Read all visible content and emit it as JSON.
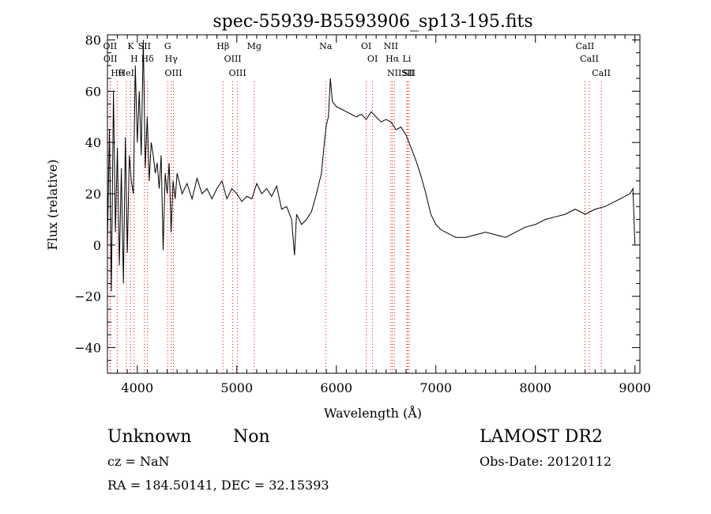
{
  "chart_data": {
    "type": "line",
    "title": "spec-55939-B5593906_sp13-195.fits",
    "xlabel": "Wavelength (Å)",
    "ylabel": "Flux (relative)",
    "xlim": [
      3700,
      9050
    ],
    "ylim": [
      -50,
      82
    ],
    "xticks": [
      4000,
      5000,
      6000,
      7000,
      8000,
      9000
    ],
    "yticks": [
      -40,
      -20,
      0,
      20,
      40,
      60,
      80
    ],
    "grid": false,
    "line_color": "#000000",
    "marker_color": "#ff0000",
    "series": [
      {
        "values_x": [
          3700,
          3720,
          3740,
          3760,
          3780,
          3800,
          3820,
          3840,
          3860,
          3880,
          3900,
          3920,
          3940,
          3960,
          3980,
          4000,
          4020,
          4040,
          4060,
          4080,
          4100,
          4120,
          4140,
          4160,
          4180,
          4200,
          4220,
          4240,
          4260,
          4280,
          4300,
          4320,
          4340,
          4360,
          4380,
          4400,
          4450,
          4500,
          4550,
          4600,
          4650,
          4700,
          4750,
          4800,
          4850,
          4900,
          4950,
          5000,
          5050,
          5100,
          5150,
          5200,
          5250,
          5300,
          5350,
          5400,
          5450,
          5500,
          5550,
          5580,
          5600,
          5650,
          5700,
          5750,
          5800,
          5850,
          5880,
          5900,
          5920,
          5940,
          5960,
          6000,
          6050,
          6100,
          6150,
          6200,
          6250,
          6300,
          6350,
          6400,
          6450,
          6500,
          6550,
          6600,
          6650,
          6700,
          6750,
          6800,
          6850,
          6900,
          6950,
          7000,
          7050,
          7100,
          7150,
          7200,
          7300,
          7400,
          7500,
          7600,
          7700,
          7800,
          7900,
          8000,
          8100,
          8200,
          8300,
          8400,
          8500,
          8600,
          8700,
          8800,
          8900,
          8950,
          8980,
          9000
        ],
        "values_y": [
          0,
          45,
          -18,
          60,
          5,
          38,
          -8,
          30,
          -15,
          42,
          -3,
          35,
          25,
          20,
          70,
          40,
          60,
          35,
          80,
          30,
          50,
          25,
          40,
          35,
          28,
          32,
          22,
          35,
          -2,
          28,
          20,
          32,
          5,
          25,
          18,
          28,
          20,
          24,
          18,
          26,
          20,
          22,
          18,
          22,
          25,
          18,
          22,
          20,
          17,
          19,
          18,
          24,
          20,
          22,
          19,
          23,
          14,
          15,
          10,
          -4,
          12,
          8,
          10,
          13,
          20,
          28,
          40,
          47,
          50,
          65,
          56,
          54,
          53,
          52,
          51,
          50,
          51,
          49,
          52,
          50,
          48,
          49,
          48,
          45,
          46,
          43,
          38,
          33,
          27,
          20,
          12,
          8,
          6,
          5,
          4,
          3,
          3,
          4,
          5,
          4,
          3,
          5,
          7,
          8,
          10,
          11,
          12,
          14,
          12,
          14,
          15,
          17,
          19,
          20,
          22,
          0
        ]
      }
    ],
    "line_labels": [
      {
        "name": "Hθ",
        "wl": 3798
      },
      {
        "name": "OII",
        "wl": 3727
      },
      {
        "name": "OII",
        "wl": 3730
      },
      {
        "name": "K",
        "wl": 3934
      },
      {
        "name": "H",
        "wl": 3969
      },
      {
        "name": "HeI",
        "wl": 3889
      },
      {
        "name": "Hδ",
        "wl": 4102
      },
      {
        "name": "SII",
        "wl": 4072
      },
      {
        "name": "G",
        "wl": 4305
      },
      {
        "name": "OIII",
        "wl": 4363
      },
      {
        "name": "Hγ",
        "wl": 4341
      },
      {
        "name": "Hβ",
        "wl": 4861
      },
      {
        "name": "OIII",
        "wl": 4959
      },
      {
        "name": "OIII",
        "wl": 5007
      },
      {
        "name": "Mg",
        "wl": 5175
      },
      {
        "name": "Na",
        "wl": 5893
      },
      {
        "name": "OI",
        "wl": 6300
      },
      {
        "name": "OI",
        "wl": 6364
      },
      {
        "name": "NII",
        "wl": 6548
      },
      {
        "name": "Hα",
        "wl": 6563
      },
      {
        "name": "NII",
        "wl": 6583
      },
      {
        "name": "SII",
        "wl": 6716
      },
      {
        "name": "Li",
        "wl": 6708
      },
      {
        "name": "SII",
        "wl": 6731
      },
      {
        "name": "CaII",
        "wl": 8498
      },
      {
        "name": "CaII",
        "wl": 8542
      },
      {
        "name": "CaII",
        "wl": 8662
      }
    ]
  },
  "footer": {
    "class_label": "Unknown",
    "subclass_label": "Non",
    "survey": "LAMOST DR2",
    "cz": "cz = NaN",
    "obs_date": "Obs-Date: 20120112",
    "coords": "RA = 184.50141, DEC =  32.15393"
  }
}
